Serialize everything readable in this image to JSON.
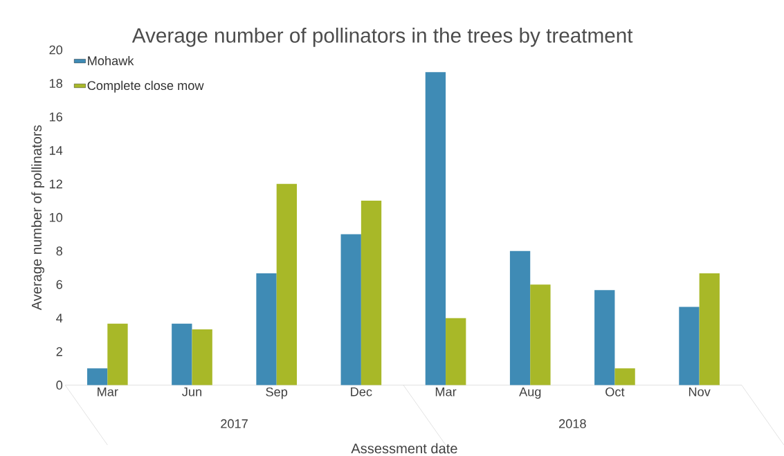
{
  "chart_data": {
    "type": "bar",
    "title": "Average number of pollinators in the trees by treatment",
    "xlabel": "Assessment date",
    "ylabel": "Average number of pollinators",
    "categories": [
      "Mar",
      "Jun",
      "Sep",
      "Dec",
      "Mar",
      "Aug",
      "Oct",
      "Nov"
    ],
    "series": [
      {
        "name": "Mohawk",
        "color": "#3f8bb5",
        "values": [
          1,
          3.67,
          6.67,
          9,
          18.67,
          8,
          5.67,
          4.67
        ]
      },
      {
        "name": "Complete close mow",
        "color": "#a8b828",
        "values": [
          3.67,
          3.33,
          12,
          11,
          4,
          6,
          1,
          6.67
        ]
      }
    ],
    "ylim": [
      0,
      20
    ],
    "yticks": [
      0,
      2,
      4,
      6,
      8,
      10,
      12,
      14,
      16,
      18,
      20
    ],
    "legend": "top left",
    "grid": false,
    "annotations": [
      "2017",
      "2018"
    ]
  }
}
